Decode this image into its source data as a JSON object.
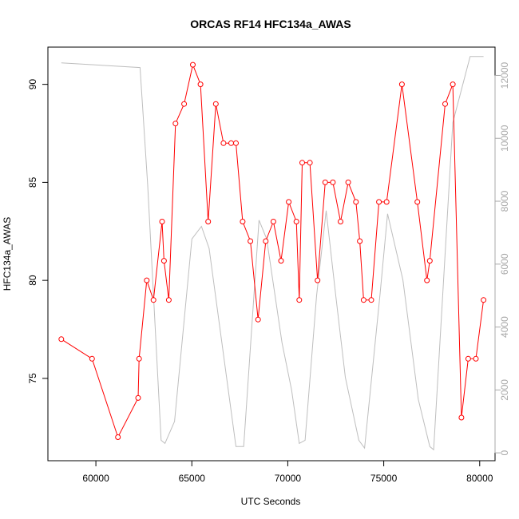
{
  "chart_data": {
    "type": "line",
    "title": "ORCAS RF14 HFC134a_AWAS",
    "xlabel": "UTC Seconds",
    "ylabel": "HFC134a_AWAS",
    "y2label": "",
    "xlim": [
      57500,
      80800
    ],
    "ylim": [
      70.8,
      91.9
    ],
    "y2lim": [
      -250,
      12900
    ],
    "x_ticks": [
      60000,
      65000,
      70000,
      75000,
      80000
    ],
    "y_ticks": [
      75,
      80,
      85,
      90
    ],
    "y2_ticks": [
      0,
      2000,
      4000,
      6000,
      8000,
      10000,
      12000
    ],
    "series": [
      {
        "axis": "left",
        "color": "#ff0000",
        "marker": "open-circle",
        "x": [
          58200,
          59800,
          61150,
          62200,
          62250,
          62650,
          63000,
          63450,
          63550,
          63800,
          64150,
          64600,
          65050,
          65450,
          65850,
          66250,
          66650,
          67050,
          67300,
          67650,
          68050,
          68450,
          68850,
          69250,
          69650,
          70050,
          70450,
          70600,
          70750,
          71150,
          71550,
          71950,
          72350,
          72750,
          73150,
          73550,
          73750,
          73950,
          74350,
          74750,
          75150,
          75950,
          76750,
          77250,
          77400,
          78200,
          78600,
          79050,
          79400,
          79800,
          80200
        ],
        "values": [
          77,
          76,
          72,
          74,
          76,
          80,
          79,
          83,
          81,
          79,
          88,
          89,
          91,
          90,
          83,
          89,
          87,
          87,
          87,
          83,
          82,
          78,
          82,
          83,
          81,
          84,
          83,
          79,
          86,
          86,
          80,
          85,
          85,
          83,
          85,
          84,
          82,
          79,
          79,
          84,
          84,
          90,
          84,
          80,
          81,
          89,
          90,
          73,
          76,
          76,
          79
        ]
      },
      {
        "axis": "right",
        "color": "#bebebe",
        "marker": "none",
        "x": [
          58200,
          62300,
          62700,
          63400,
          63600,
          64100,
          65000,
          65500,
          65900,
          66900,
          67300,
          67700,
          68500,
          68900,
          69700,
          70200,
          70600,
          70900,
          71500,
          72000,
          72500,
          73000,
          73700,
          74000,
          74800,
          75200,
          76000,
          76800,
          77400,
          77600,
          78600,
          79500,
          79900,
          80200
        ],
        "values": [
          12400,
          12250,
          8500,
          400,
          300,
          1000,
          6800,
          7200,
          6500,
          2000,
          200,
          200,
          7400,
          6800,
          3500,
          2000,
          300,
          400,
          5000,
          7700,
          5000,
          2400,
          400,
          150,
          5000,
          7600,
          5500,
          1700,
          200,
          100,
          10500,
          12600,
          12600,
          12600
        ]
      }
    ]
  }
}
